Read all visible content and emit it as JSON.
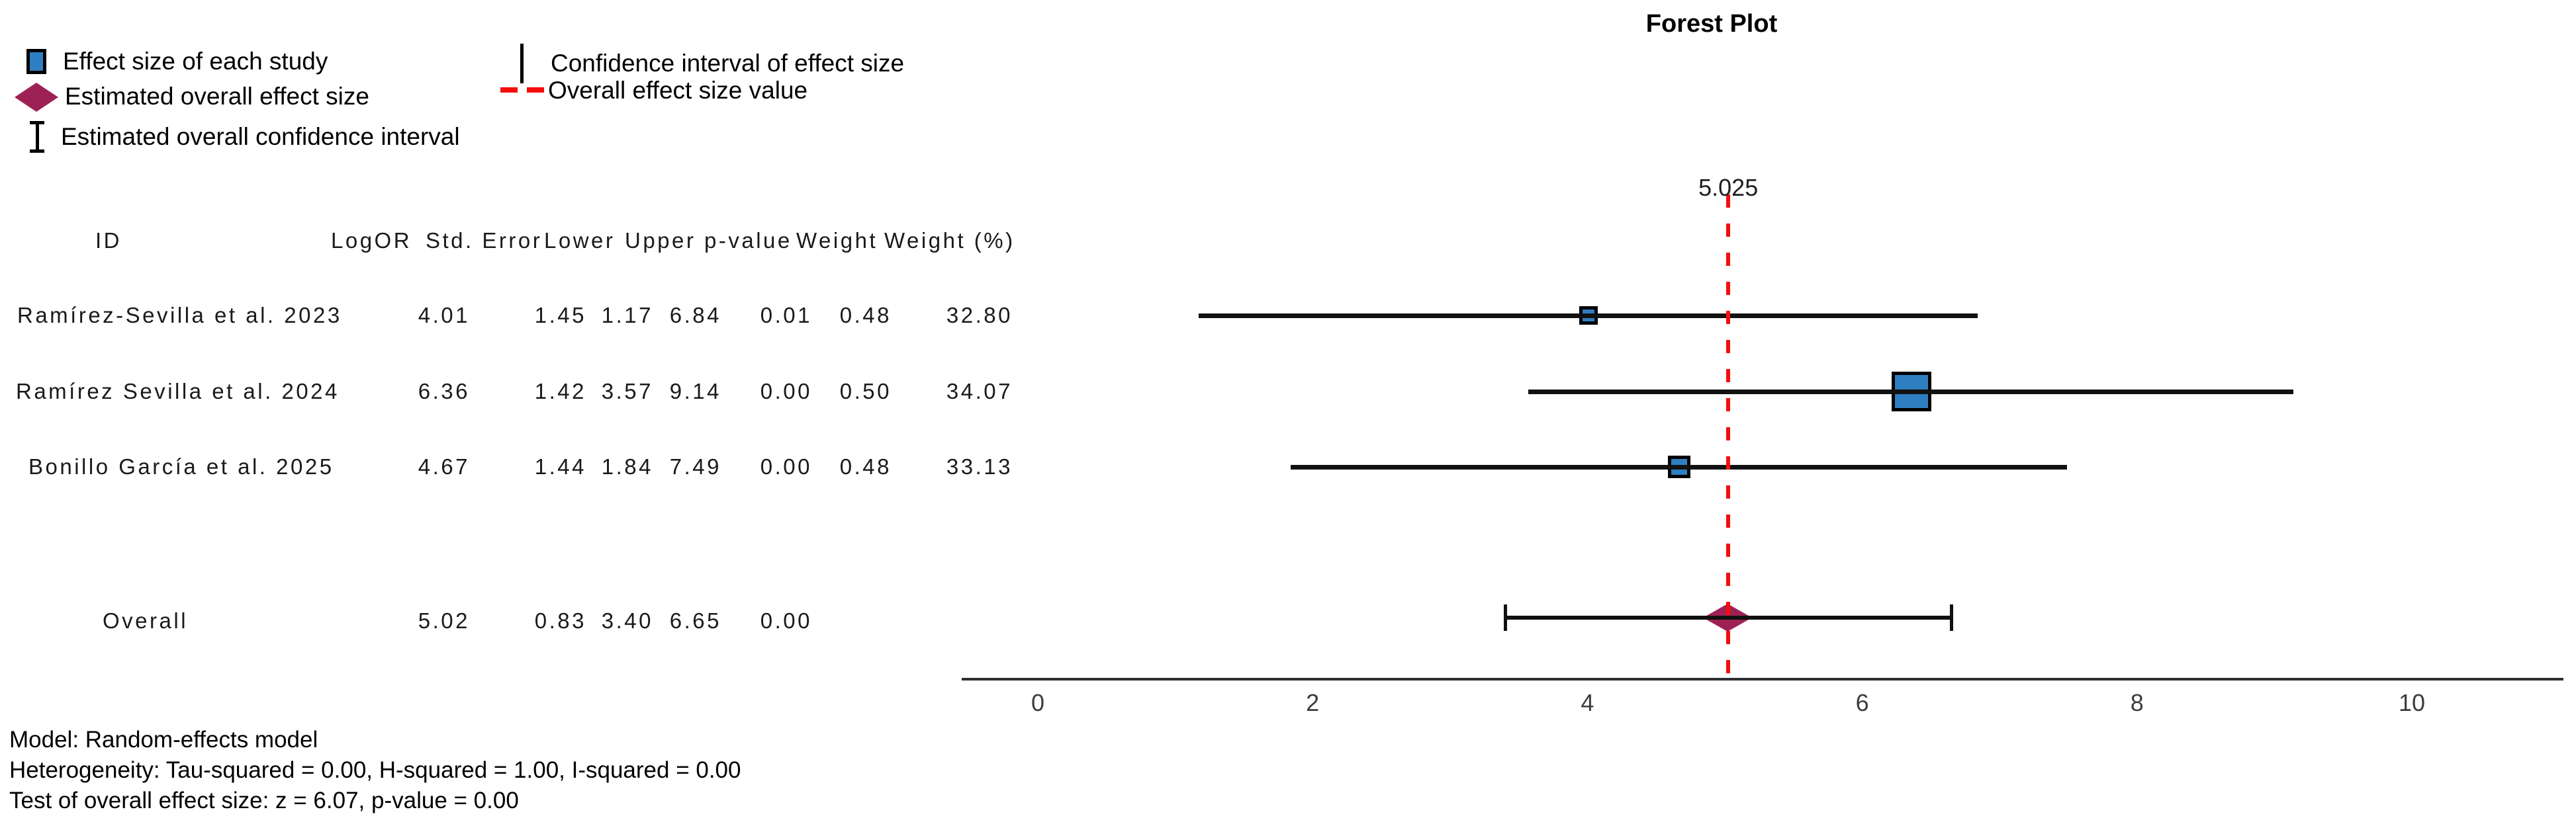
{
  "title": "Forest Plot",
  "legend": {
    "items": [
      {
        "icon": "study-square",
        "label": "Effect size of each study"
      },
      {
        "icon": "overall-diamond",
        "label": "Estimated overall effect size"
      },
      {
        "icon": "overall-ci-ibeam",
        "label": "Estimated overall confidence interval"
      },
      {
        "icon": "ci-vertical-line",
        "label": "Confidence interval of effect size"
      },
      {
        "icon": "red-dashed-line",
        "label": "Overall effect size value"
      }
    ]
  },
  "table": {
    "id_header": "ID",
    "headers": [
      "LogOR",
      "Std. Error",
      "Lower",
      "Upper",
      "p-value",
      "Weight",
      "Weight (%)"
    ],
    "rows": [
      {
        "id": "Ramírez-Sevilla et al. 2023",
        "values": [
          "4.01",
          "1.45",
          "1.17",
          "6.84",
          "0.01",
          "0.48",
          "32.80"
        ]
      },
      {
        "id": "Ramírez Sevilla et al. 2024",
        "values": [
          "6.36",
          "1.42",
          "3.57",
          "9.14",
          "0.00",
          "0.50",
          "34.07"
        ]
      },
      {
        "id": "Bonillo García et al. 2025",
        "values": [
          "4.67",
          "1.44",
          "1.84",
          "7.49",
          "0.00",
          "0.48",
          "33.13"
        ]
      },
      {
        "id": "Overall",
        "values": [
          "5.02",
          "0.83",
          "3.40",
          "6.65",
          "0.00",
          "",
          ""
        ]
      }
    ]
  },
  "footnotes": [
    "Model: Random-effects model",
    "Heterogeneity: Tau-squared = 0.00, H-squared = 1.00, I-squared = 0.00",
    "Test of overall effect size: z = 6.07, p-value = 0.00"
  ],
  "colors": {
    "study_marker": "#2E7FC1",
    "overall_marker": "#9E2155",
    "overall_line": "#F50D0D",
    "ci_line": "#111111",
    "axis": "#2E2E2E"
  },
  "chart_data": {
    "type": "forest",
    "title": "Forest Plot",
    "xlabel": "",
    "x_ticks": [
      0,
      2,
      4,
      6,
      8,
      10
    ],
    "axis_range": [
      -0.55,
      11.1
    ],
    "grid": false,
    "studies": [
      {
        "id": "Ramírez-Sevilla et al. 2023",
        "logor": 4.01,
        "std_error": 1.45,
        "lower": 1.17,
        "upper": 6.84,
        "p_value": 0.01,
        "weight": 0.48,
        "weight_pct": 32.8
      },
      {
        "id": "Ramírez Sevilla et al. 2024",
        "logor": 6.36,
        "std_error": 1.42,
        "lower": 3.57,
        "upper": 9.14,
        "p_value": 0.0,
        "weight": 0.5,
        "weight_pct": 34.07
      },
      {
        "id": "Bonillo García et al. 2025",
        "logor": 4.67,
        "std_error": 1.44,
        "lower": 1.84,
        "upper": 7.49,
        "p_value": 0.0,
        "weight": 0.48,
        "weight_pct": 33.13
      }
    ],
    "overall": {
      "id": "Overall",
      "logor": 5.02,
      "std_error": 0.83,
      "lower": 3.4,
      "upper": 6.65,
      "p_value": 0.0
    },
    "overall_line_value": 5.025,
    "overall_line_label": "5.025"
  }
}
